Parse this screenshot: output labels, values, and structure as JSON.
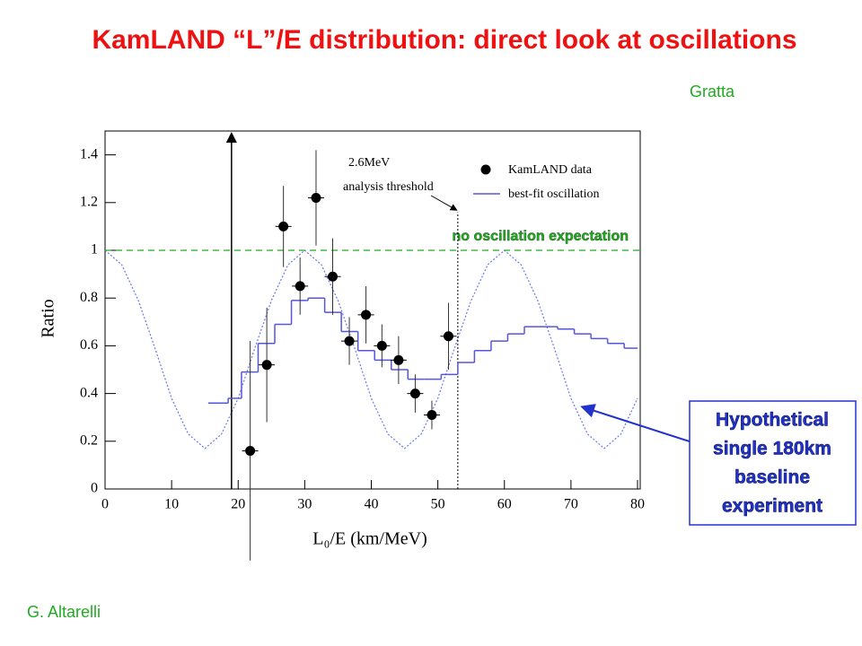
{
  "chart_data": {
    "type": "scatter",
    "title": "KamLAND “L”/E distribution: direct look at oscillations",
    "credit_top": "Gratta",
    "credit_bottom": "G. Altarelli",
    "xlabel": "L₀/E (km/MeV)",
    "ylabel": "Ratio",
    "xlim": [
      0,
      80
    ],
    "ylim": [
      0,
      1.5
    ],
    "xticks": [
      0,
      10,
      20,
      30,
      40,
      50,
      60,
      70,
      80
    ],
    "yticks": [
      0,
      0.2,
      0.4,
      0.6,
      0.8,
      1,
      1.2,
      1.4
    ],
    "series": [
      {
        "name": "KamLAND data",
        "color": "#000000",
        "x": [
          21.8,
          24.3,
          26.8,
          29.3,
          31.7,
          34.2,
          36.7,
          39.2,
          41.6,
          44.1,
          46.6,
          49.1,
          51.6
        ],
        "values": [
          0.16,
          0.52,
          1.1,
          0.85,
          1.22,
          0.89,
          0.62,
          0.73,
          0.6,
          0.54,
          0.4,
          0.31,
          0.64
        ],
        "errors": [
          0.46,
          0.24,
          0.17,
          0.12,
          0.2,
          0.16,
          0.1,
          0.12,
          0.09,
          0.1,
          0.08,
          0.06,
          0.14
        ]
      },
      {
        "name": "best-fit oscillation",
        "color": "#5555dd",
        "bins": [
          15.5,
          18.5,
          20.5,
          23,
          25.5,
          28,
          30.5,
          33,
          35.5,
          38,
          40.5,
          43,
          45.5,
          48,
          50.5,
          53,
          55.5,
          58,
          60.5,
          63,
          65.5,
          68,
          70.5,
          73,
          75.5,
          78,
          80
        ],
        "values": [
          0.36,
          0.38,
          0.49,
          0.61,
          0.69,
          0.79,
          0.8,
          0.74,
          0.66,
          0.58,
          0.54,
          0.5,
          0.46,
          0.46,
          0.48,
          0.53,
          0.58,
          0.62,
          0.65,
          0.68,
          0.68,
          0.67,
          0.65,
          0.63,
          0.61,
          0.59
        ]
      }
    ],
    "hypothetical_curve": {
      "color": "#6677ee",
      "x": [
        0,
        2.5,
        5,
        7.5,
        10,
        12.5,
        15,
        17.5,
        20,
        22.5,
        25,
        27.5,
        30,
        32.5,
        35,
        37.5,
        40,
        42.5,
        45,
        47.5,
        50,
        52.5,
        55,
        57.5,
        60,
        62.5,
        65,
        67.5,
        70,
        72.5,
        75,
        77.5,
        80
      ],
      "values": [
        1.0,
        0.94,
        0.79,
        0.59,
        0.38,
        0.23,
        0.17,
        0.23,
        0.38,
        0.59,
        0.79,
        0.94,
        1.0,
        0.94,
        0.79,
        0.59,
        0.38,
        0.23,
        0.17,
        0.23,
        0.38,
        0.59,
        0.79,
        0.94,
        1.0,
        0.94,
        0.79,
        0.59,
        0.38,
        0.23,
        0.17,
        0.23,
        0.38
      ]
    },
    "no_oscillation": {
      "label": "no oscillation expectation",
      "y": 1,
      "color": "#22aa22"
    },
    "threshold": {
      "label_lines": [
        "2.6MeV",
        "analysis threshold"
      ],
      "x": 53
    },
    "cutoff_x": 19,
    "annotation_lines": [
      "Hypothetical",
      "single 180km",
      "baseline",
      "experiment"
    ]
  }
}
